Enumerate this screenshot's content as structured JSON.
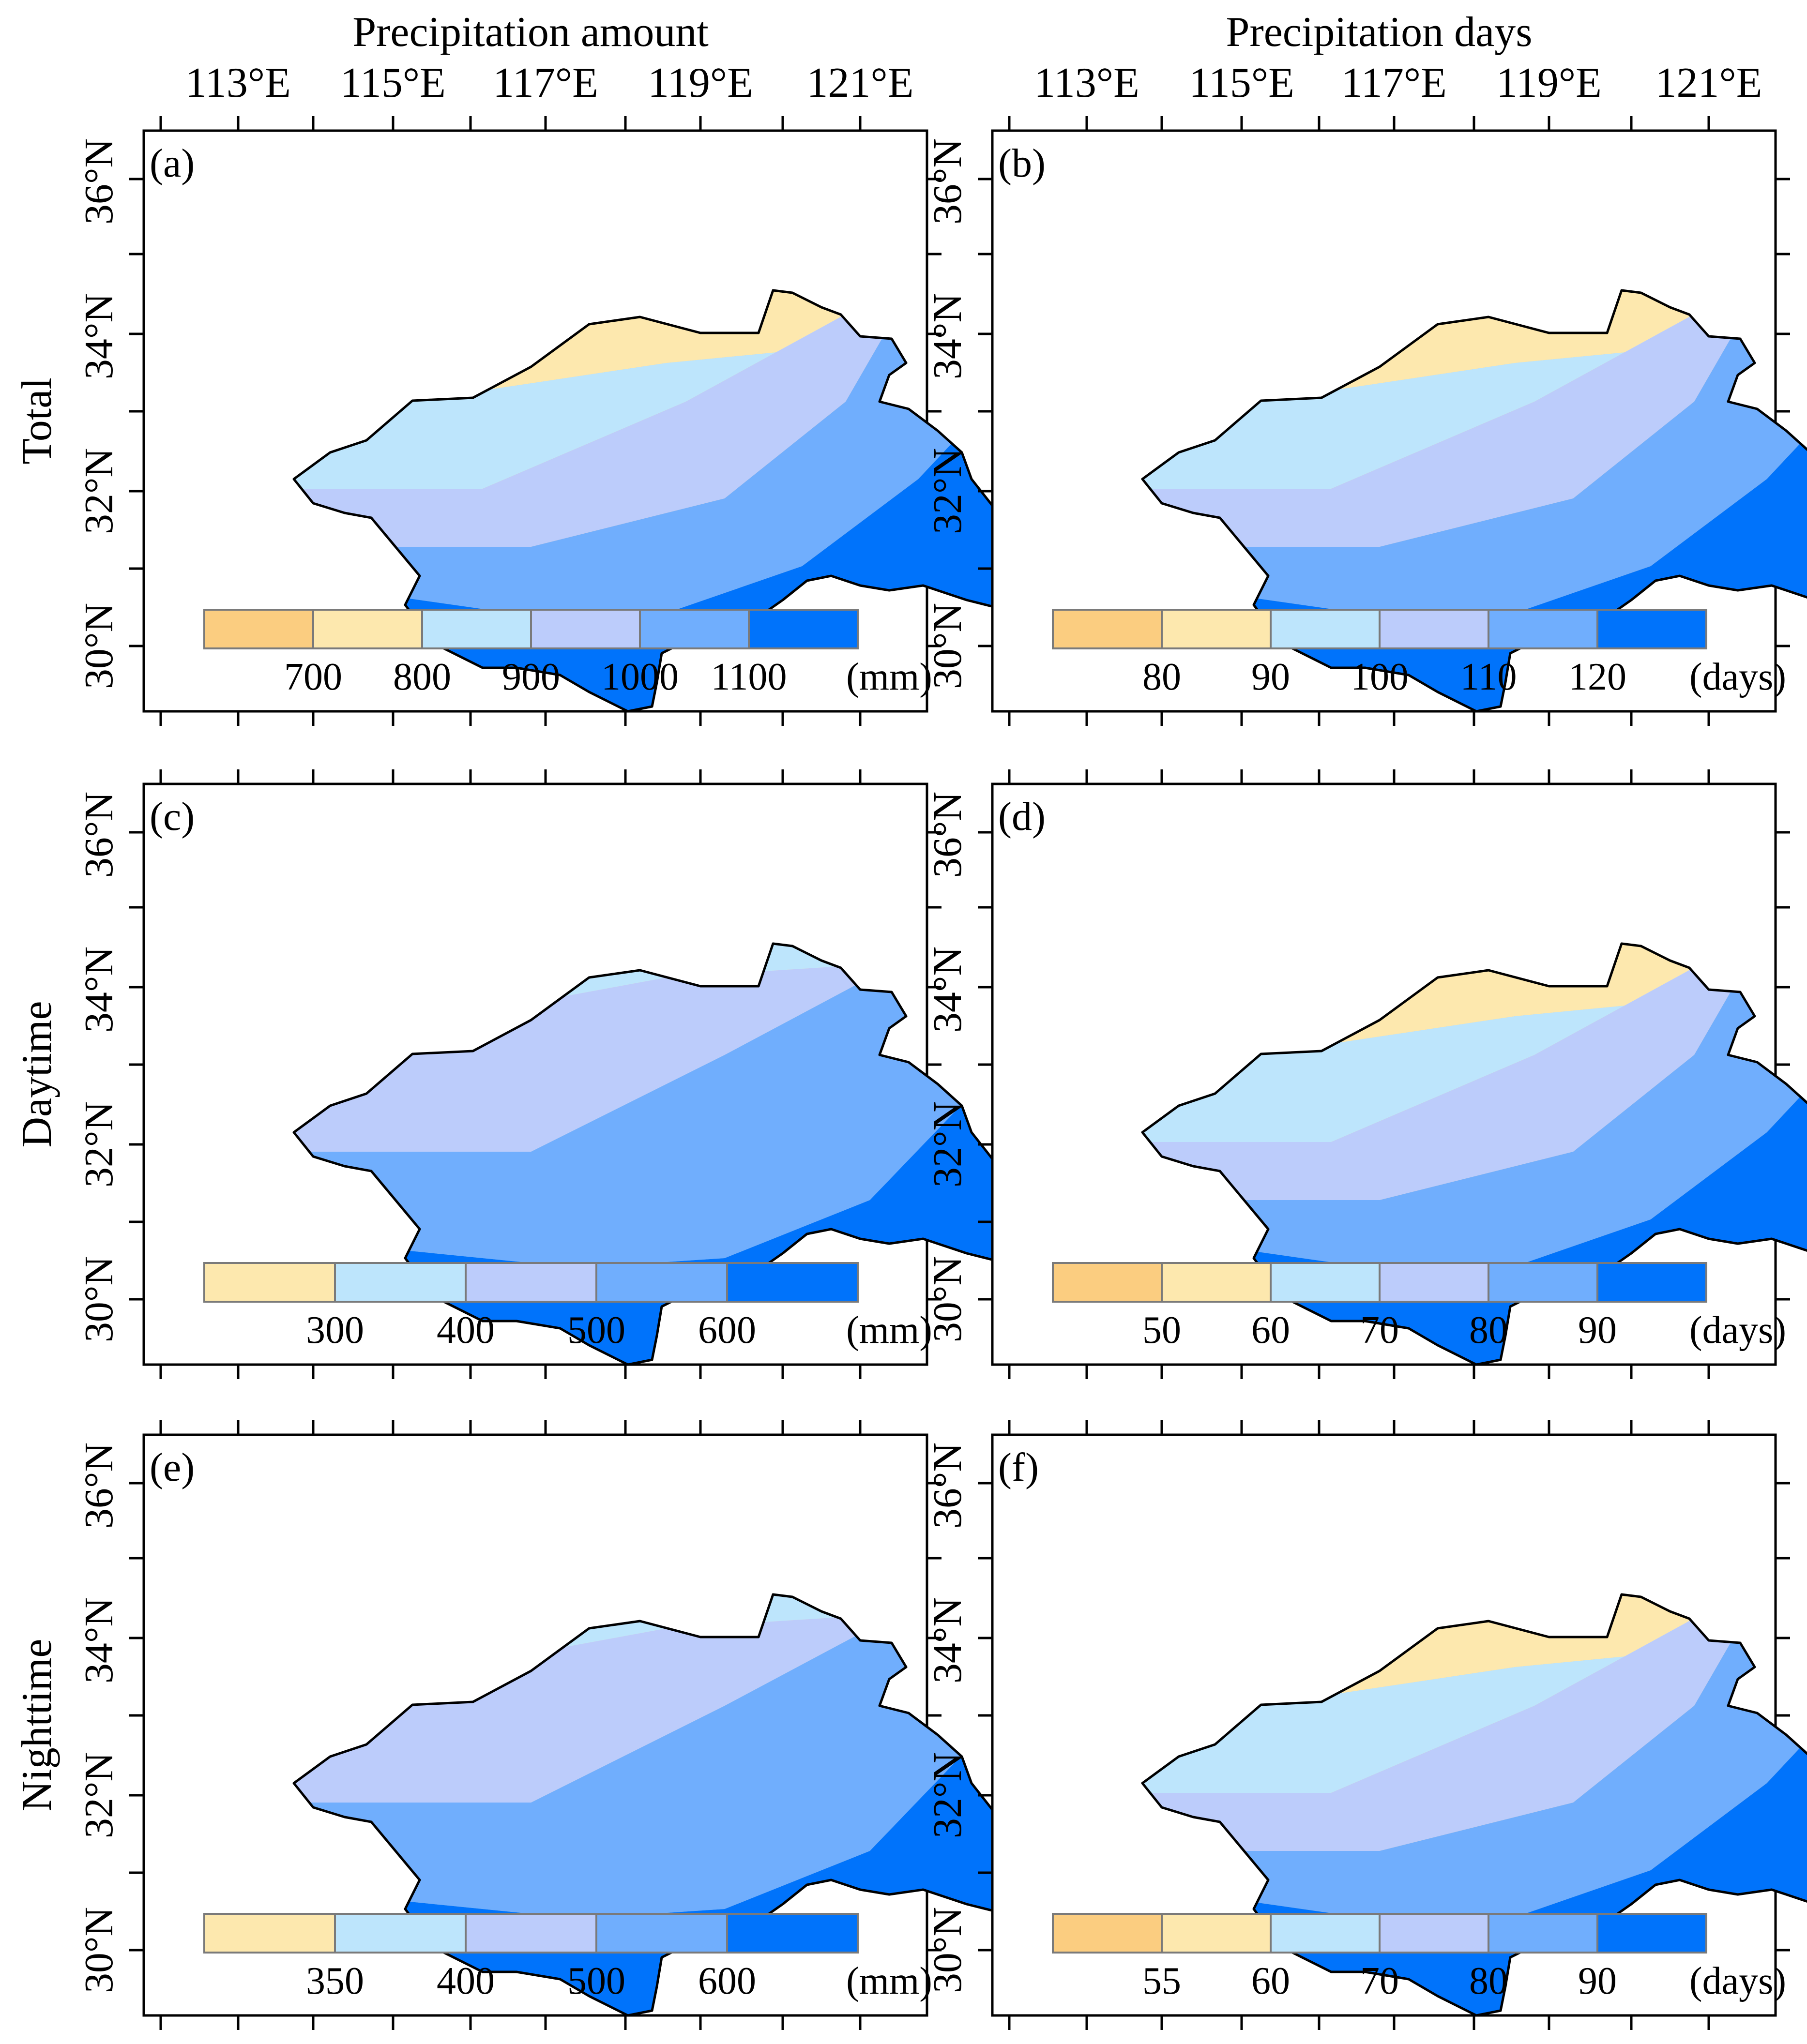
{
  "columns": [
    {
      "title": "Precipitation amount",
      "lon_labels": [
        "113°E",
        "115°E",
        "117°E",
        "119°E",
        "121°E"
      ]
    },
    {
      "title": "Precipitation days",
      "lon_labels": [
        "113°E",
        "115°E",
        "117°E",
        "119°E",
        "121°E"
      ]
    }
  ],
  "rows": [
    {
      "title": "Total"
    },
    {
      "title": "Daytime"
    },
    {
      "title": "Nighttime"
    }
  ],
  "lat_labels": [
    "36°N",
    "34°N",
    "32°N",
    "30°N"
  ],
  "colors": {
    "c1": "#fbcd80",
    "c2": "#fde8ae",
    "c3": "#bde5fc",
    "c4": "#bcccfb",
    "c5": "#70aefd",
    "c6": "#0073fb",
    "border": "#000000"
  },
  "panels": [
    {
      "label": "(a)",
      "palette": [
        "c1",
        "c2",
        "c3",
        "c4",
        "c5",
        "c6"
      ],
      "legend_values": [
        "700",
        "800",
        "900",
        "1000",
        "1100"
      ],
      "unit": "(mm)"
    },
    {
      "label": "(b)",
      "palette": [
        "c1",
        "c2",
        "c3",
        "c4",
        "c5",
        "c6"
      ],
      "legend_values": [
        "80",
        "90",
        "100",
        "110",
        "120"
      ],
      "unit": "(days)"
    },
    {
      "label": "(c)",
      "palette": [
        "c2",
        "c3",
        "c4",
        "c5",
        "c6"
      ],
      "legend_values": [
        "300",
        "400",
        "500",
        "600"
      ],
      "unit": "(mm)"
    },
    {
      "label": "(d)",
      "palette": [
        "c1",
        "c2",
        "c3",
        "c4",
        "c5",
        "c6"
      ],
      "legend_values": [
        "50",
        "60",
        "70",
        "80",
        "90"
      ],
      "unit": "(days)"
    },
    {
      "label": "(e)",
      "palette": [
        "c2",
        "c3",
        "c4",
        "c5",
        "c6"
      ],
      "legend_values": [
        "350",
        "400",
        "500",
        "600"
      ],
      "unit": "(mm)"
    },
    {
      "label": "(f)",
      "palette": [
        "c1",
        "c2",
        "c3",
        "c4",
        "c5",
        "c6"
      ],
      "legend_values": [
        "55",
        "60",
        "70",
        "80",
        "90"
      ],
      "unit": "(days)"
    }
  ]
}
